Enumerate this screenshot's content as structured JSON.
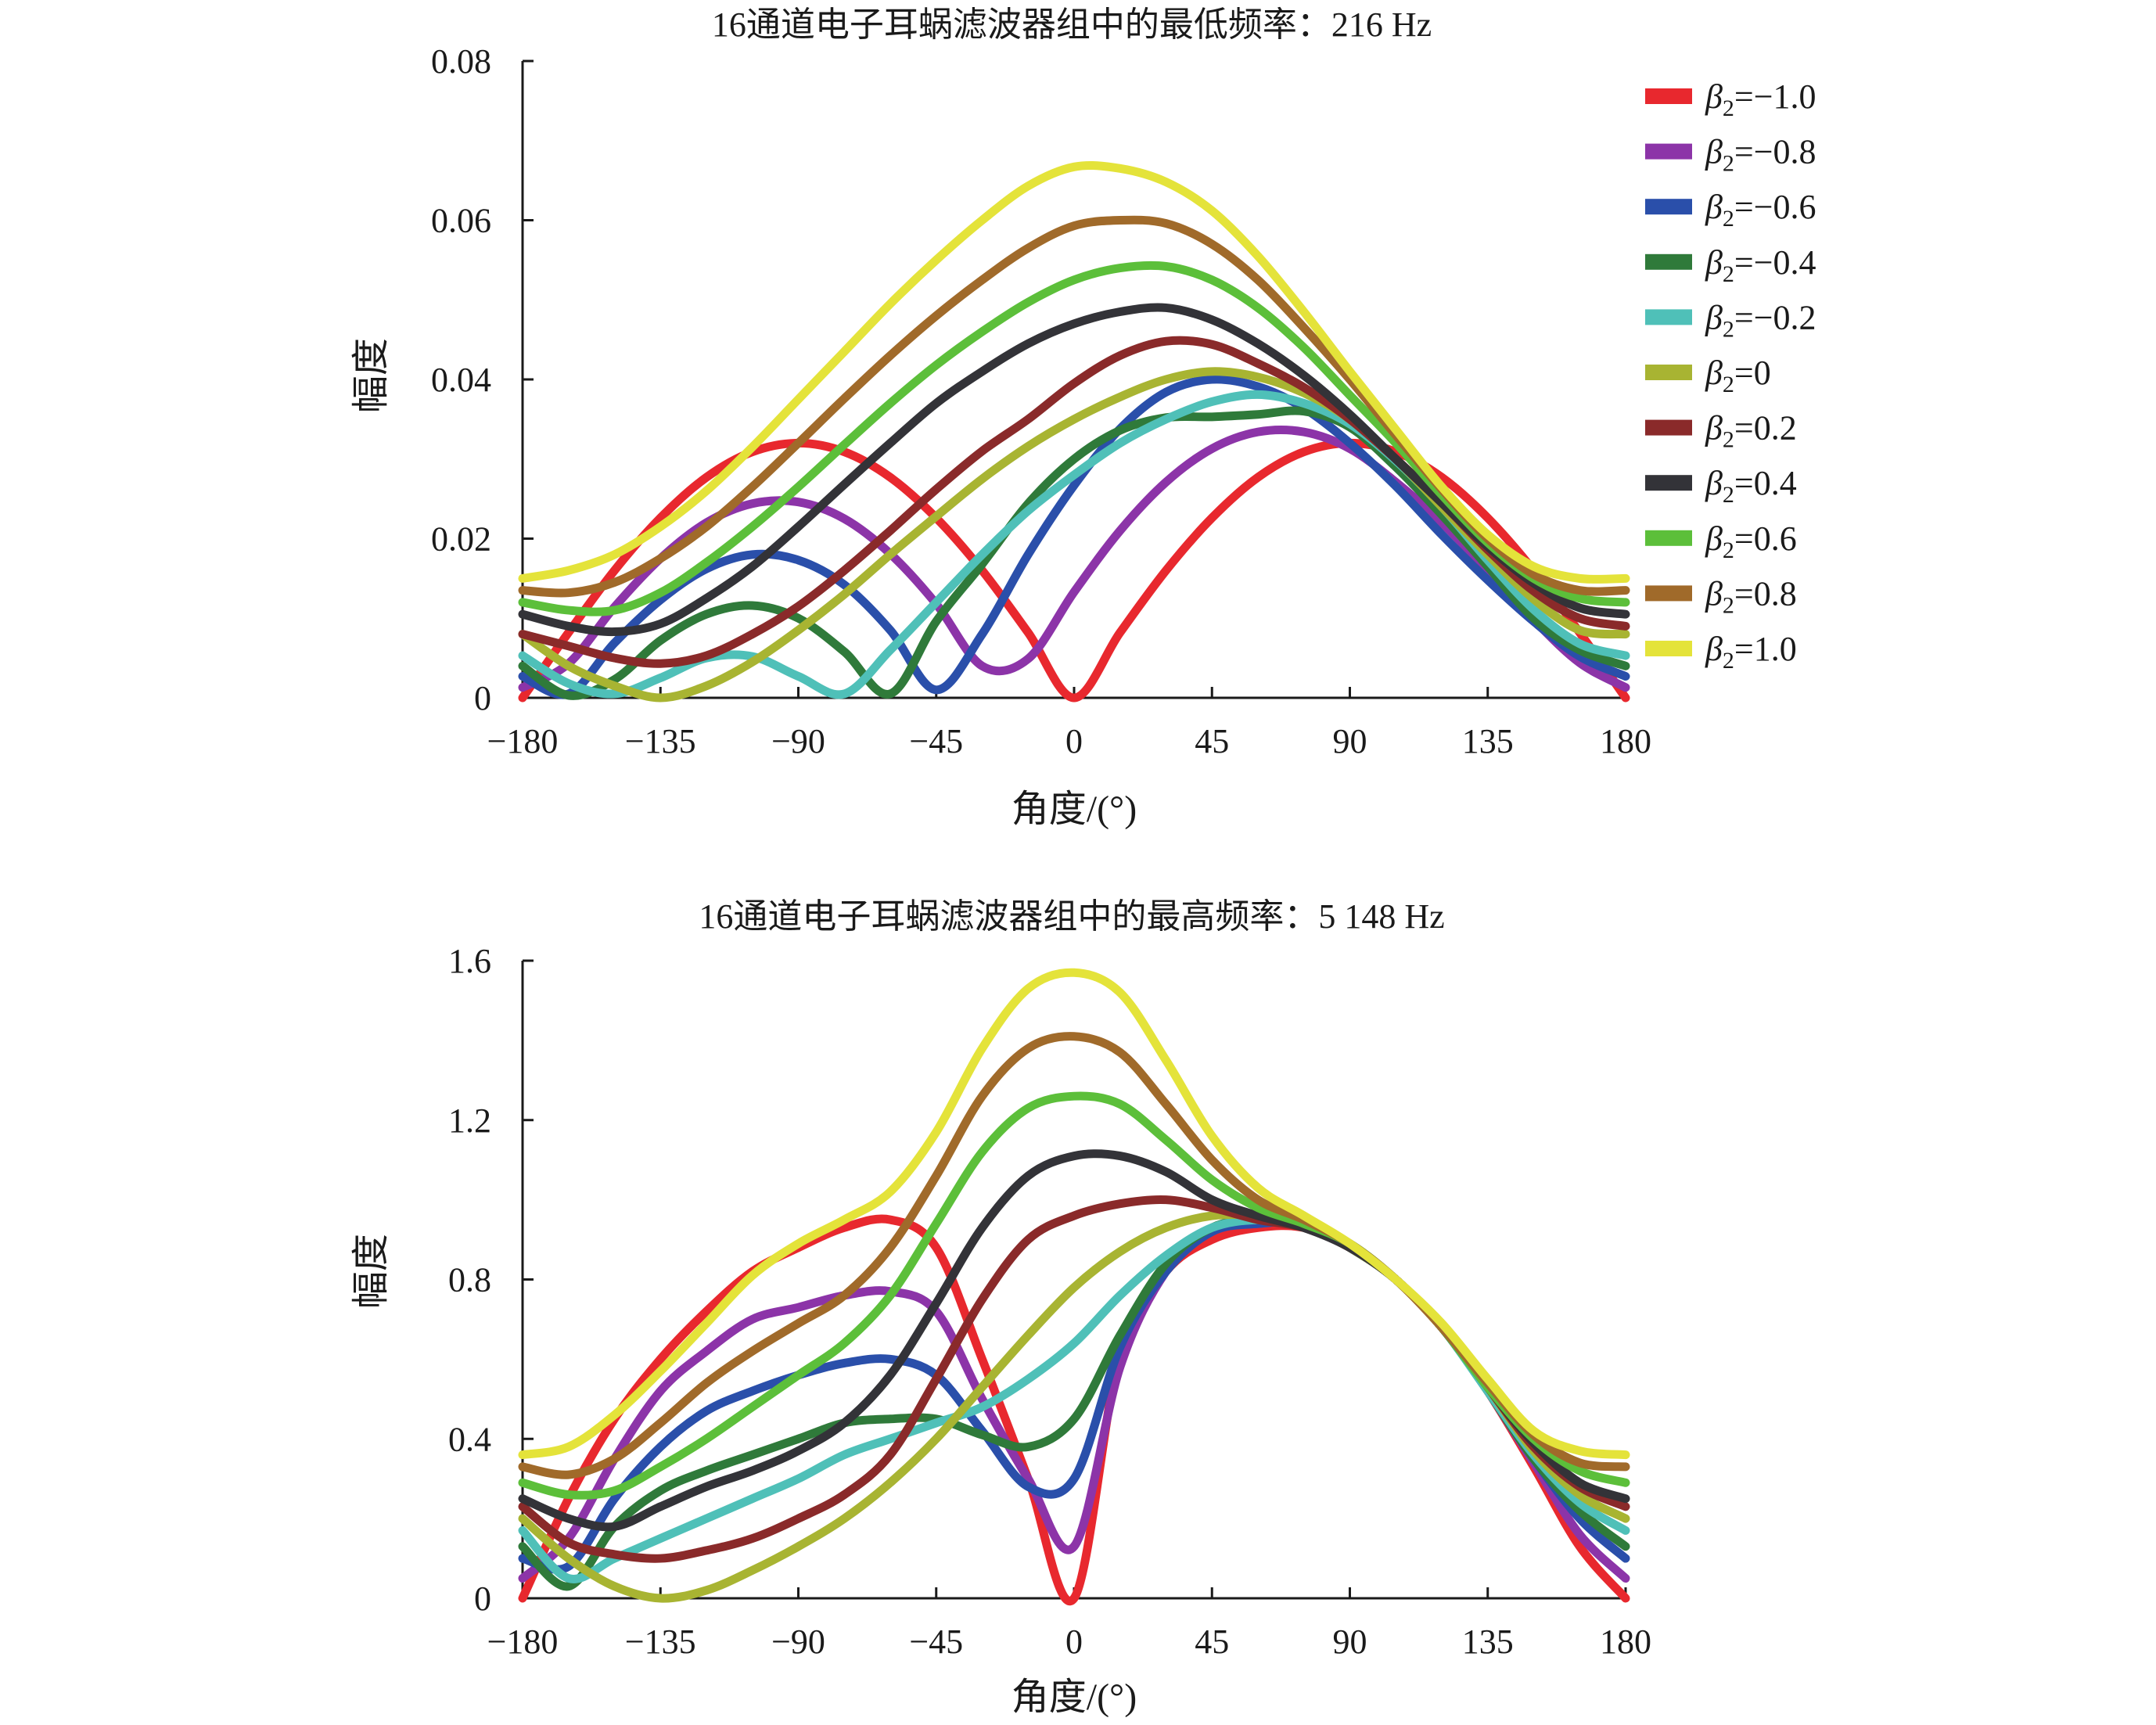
{
  "chart_data": [
    {
      "type": "line",
      "title": "16通道电子耳蜗滤波器组中的最低频率：216 Hz",
      "xlabel": "角度/(°)",
      "ylabel": "幅度",
      "xlim": [
        -180,
        180
      ],
      "ylim": [
        0,
        0.08
      ],
      "xticks": [
        -180,
        -135,
        -90,
        -45,
        0,
        45,
        90,
        135,
        180
      ],
      "xtick_labels": [
        "−180",
        "−135",
        "−90",
        "−45",
        "0",
        "45",
        "90",
        "135",
        "180"
      ],
      "yticks": [
        0,
        0.02,
        0.04,
        0.06,
        0.08
      ],
      "ytick_labels": [
        "0",
        "0.02",
        "0.04",
        "0.06",
        "0.08"
      ],
      "grid": false,
      "legend_placement": "right",
      "x": [
        -180,
        -165,
        -150,
        -135,
        -120,
        -105,
        -90,
        -75,
        -60,
        -45,
        -30,
        -15,
        0,
        15,
        30,
        45,
        60,
        75,
        90,
        105,
        120,
        135,
        150,
        165,
        180
      ],
      "series": [
        {
          "name": "β2=−1.0",
          "color": "#e8282e",
          "values": [
            0.0,
            0.0082,
            0.016,
            0.0226,
            0.0277,
            0.0309,
            0.032,
            0.0309,
            0.0277,
            0.0226,
            0.016,
            0.0082,
            0.0,
            0.0082,
            0.016,
            0.0226,
            0.0277,
            0.0309,
            0.032,
            0.0309,
            0.0277,
            0.0226,
            0.016,
            0.0082,
            0.0
          ]
        },
        {
          "name": "β2=−0.8",
          "color": "#8c34a8",
          "values": [
            0.0013,
            0.0043,
            0.0114,
            0.0175,
            0.022,
            0.0244,
            0.0246,
            0.0225,
            0.0181,
            0.0118,
            0.004,
            0.0049,
            0.0133,
            0.021,
            0.0271,
            0.0313,
            0.0334,
            0.0334,
            0.0313,
            0.0271,
            0.022,
            0.016,
            0.0098,
            0.0044,
            0.0013
          ]
        },
        {
          "name": "β2=−0.6",
          "color": "#2a4faa",
          "values": [
            0.0027,
            0.0005,
            0.0069,
            0.0123,
            0.0162,
            0.018,
            0.0173,
            0.0142,
            0.0085,
            0.001,
            0.008,
            0.018,
            0.0267,
            0.0338,
            0.0384,
            0.04,
            0.0391,
            0.0364,
            0.032,
            0.0266,
            0.0205,
            0.0148,
            0.0096,
            0.0052,
            0.0027
          ]
        },
        {
          "name": "β2=−0.4",
          "color": "#2f7a3a",
          "values": [
            0.004,
            0.0003,
            0.0023,
            0.0072,
            0.0105,
            0.0116,
            0.01,
            0.0058,
            0.0005,
            0.0096,
            0.0168,
            0.0244,
            0.03,
            0.0336,
            0.0352,
            0.0353,
            0.0356,
            0.036,
            0.034,
            0.029,
            0.023,
            0.0165,
            0.01,
            0.006,
            0.004
          ]
        },
        {
          "name": "β2=−0.2",
          "color": "#4fc0b8",
          "values": [
            0.0053,
            0.0018,
            0.0005,
            0.0025,
            0.005,
            0.0052,
            0.0027,
            0.0005,
            0.006,
            0.012,
            0.018,
            0.0235,
            0.028,
            0.032,
            0.035,
            0.0372,
            0.0381,
            0.037,
            0.0344,
            0.0298,
            0.024,
            0.0173,
            0.0111,
            0.0068,
            0.0053
          ]
        },
        {
          "name": "β2=0",
          "color": "#a8b432",
          "values": [
            0.008,
            0.004,
            0.0015,
            0.0,
            0.0015,
            0.0045,
            0.0085,
            0.013,
            0.018,
            0.0228,
            0.0275,
            0.0316,
            0.035,
            0.0378,
            0.04,
            0.041,
            0.0403,
            0.0383,
            0.035,
            0.03,
            0.024,
            0.018,
            0.0124,
            0.0085,
            0.008
          ]
        },
        {
          "name": "β2=0.2",
          "color": "#8a2a2a",
          "values": [
            0.008,
            0.0065,
            0.005,
            0.0043,
            0.0053,
            0.008,
            0.0115,
            0.016,
            0.021,
            0.0262,
            0.031,
            0.035,
            0.0395,
            0.043,
            0.0448,
            0.0444,
            0.042,
            0.039,
            0.035,
            0.03,
            0.0245,
            0.0186,
            0.0134,
            0.01,
            0.009
          ]
        },
        {
          "name": "β2=0.4",
          "color": "#333338",
          "values": [
            0.0105,
            0.009,
            0.0083,
            0.0093,
            0.0125,
            0.0165,
            0.0215,
            0.0268,
            0.032,
            0.037,
            0.041,
            0.0445,
            0.047,
            0.0485,
            0.049,
            0.0475,
            0.0445,
            0.0405,
            0.0356,
            0.03,
            0.0245,
            0.019,
            0.0144,
            0.0113,
            0.0105
          ]
        },
        {
          "name": "β2=0.6",
          "color": "#5cbf3a",
          "values": [
            0.012,
            0.011,
            0.011,
            0.0132,
            0.017,
            0.0215,
            0.0265,
            0.0318,
            0.037,
            0.0418,
            0.046,
            0.0497,
            0.0525,
            0.054,
            0.0542,
            0.0525,
            0.049,
            0.044,
            0.038,
            0.032,
            0.0255,
            0.0195,
            0.015,
            0.0125,
            0.012
          ]
        },
        {
          "name": "β2=0.8",
          "color": "#a06a2a",
          "values": [
            0.0135,
            0.0132,
            0.0145,
            0.0175,
            0.0215,
            0.0265,
            0.032,
            0.0376,
            0.043,
            0.048,
            0.0525,
            0.0565,
            0.0593,
            0.06,
            0.0596,
            0.057,
            0.0525,
            0.0465,
            0.04,
            0.033,
            0.0262,
            0.02,
            0.0155,
            0.0135,
            0.0135
          ]
        },
        {
          "name": "β2=1.0",
          "color": "#e4e33a",
          "values": [
            0.015,
            0.016,
            0.018,
            0.0215,
            0.026,
            0.0315,
            0.0375,
            0.0435,
            0.0495,
            0.055,
            0.06,
            0.0643,
            0.0667,
            0.0665,
            0.0648,
            0.0612,
            0.0555,
            0.0485,
            0.041,
            0.0337,
            0.0265,
            0.0205,
            0.0165,
            0.015,
            0.015
          ]
        }
      ]
    },
    {
      "type": "line",
      "title": "16通道电子耳蜗滤波器组中的最高频率：5 148 Hz",
      "xlabel": "角度/(°)",
      "ylabel": "幅度",
      "xlim": [
        -180,
        180
      ],
      "ylim": [
        0,
        1.6
      ],
      "xticks": [
        -180,
        -135,
        -90,
        -45,
        0,
        45,
        90,
        135,
        180
      ],
      "xtick_labels": [
        "−180",
        "−135",
        "−90",
        "−45",
        "0",
        "45",
        "90",
        "135",
        "180"
      ],
      "yticks": [
        0,
        0.4,
        0.8,
        1.2,
        1.6
      ],
      "ytick_labels": [
        "0",
        "0.4",
        "0.8",
        "1.2",
        "1.6"
      ],
      "grid": false,
      "x": [
        -180,
        -165,
        -150,
        -135,
        -120,
        -105,
        -90,
        -75,
        -60,
        -45,
        -30,
        -15,
        0,
        15,
        30,
        45,
        60,
        75,
        90,
        105,
        120,
        135,
        150,
        165,
        180
      ],
      "series": [
        {
          "name": "β2=−1.0",
          "color": "#e8282e",
          "values": [
            0.0,
            0.25,
            0.45,
            0.6,
            0.72,
            0.82,
            0.88,
            0.93,
            0.95,
            0.88,
            0.6,
            0.3,
            0.0,
            0.62,
            0.82,
            0.9,
            0.93,
            0.93,
            0.88,
            0.8,
            0.68,
            0.52,
            0.33,
            0.13,
            0.0
          ]
        },
        {
          "name": "β2=−0.8",
          "color": "#8c34a8",
          "values": [
            0.05,
            0.15,
            0.35,
            0.52,
            0.62,
            0.7,
            0.73,
            0.76,
            0.77,
            0.72,
            0.5,
            0.3,
            0.13,
            0.58,
            0.82,
            0.92,
            0.94,
            0.94,
            0.88,
            0.8,
            0.68,
            0.52,
            0.34,
            0.16,
            0.05
          ]
        },
        {
          "name": "β2=−0.6",
          "color": "#2a4faa",
          "values": [
            0.1,
            0.08,
            0.25,
            0.38,
            0.47,
            0.52,
            0.56,
            0.59,
            0.6,
            0.56,
            0.42,
            0.28,
            0.3,
            0.63,
            0.82,
            0.92,
            0.94,
            0.94,
            0.88,
            0.8,
            0.68,
            0.52,
            0.35,
            0.2,
            0.1
          ]
        },
        {
          "name": "β2=−0.4",
          "color": "#2f7a3a",
          "values": [
            0.13,
            0.03,
            0.18,
            0.27,
            0.32,
            0.36,
            0.4,
            0.44,
            0.45,
            0.45,
            0.41,
            0.38,
            0.45,
            0.66,
            0.84,
            0.93,
            0.95,
            0.94,
            0.88,
            0.8,
            0.68,
            0.52,
            0.35,
            0.22,
            0.13
          ]
        },
        {
          "name": "β2=−0.2",
          "color": "#4fc0b8",
          "values": [
            0.17,
            0.05,
            0.1,
            0.15,
            0.2,
            0.25,
            0.3,
            0.36,
            0.4,
            0.44,
            0.48,
            0.55,
            0.64,
            0.76,
            0.86,
            0.93,
            0.95,
            0.94,
            0.88,
            0.8,
            0.68,
            0.52,
            0.36,
            0.24,
            0.17
          ]
        },
        {
          "name": "β2=0",
          "color": "#a8b432",
          "values": [
            0.2,
            0.1,
            0.03,
            0.0,
            0.02,
            0.07,
            0.13,
            0.2,
            0.29,
            0.4,
            0.53,
            0.66,
            0.78,
            0.87,
            0.93,
            0.96,
            0.96,
            0.94,
            0.88,
            0.8,
            0.68,
            0.53,
            0.37,
            0.26,
            0.2
          ]
        },
        {
          "name": "β2=0.2",
          "color": "#8a2a2a",
          "values": [
            0.23,
            0.14,
            0.11,
            0.1,
            0.12,
            0.15,
            0.2,
            0.26,
            0.36,
            0.55,
            0.75,
            0.9,
            0.96,
            0.99,
            1.0,
            0.98,
            0.95,
            0.93,
            0.88,
            0.8,
            0.68,
            0.53,
            0.38,
            0.28,
            0.23
          ]
        },
        {
          "name": "β2=0.4",
          "color": "#333338",
          "values": [
            0.25,
            0.2,
            0.18,
            0.23,
            0.28,
            0.32,
            0.37,
            0.44,
            0.56,
            0.74,
            0.93,
            1.06,
            1.11,
            1.11,
            1.07,
            1.0,
            0.96,
            0.93,
            0.88,
            0.8,
            0.68,
            0.53,
            0.39,
            0.29,
            0.25
          ]
        },
        {
          "name": "β2=0.6",
          "color": "#5cbf3a",
          "values": [
            0.29,
            0.26,
            0.27,
            0.33,
            0.4,
            0.48,
            0.56,
            0.64,
            0.76,
            0.94,
            1.12,
            1.23,
            1.26,
            1.24,
            1.15,
            1.05,
            0.98,
            0.94,
            0.89,
            0.8,
            0.68,
            0.53,
            0.4,
            0.32,
            0.29
          ]
        },
        {
          "name": "β2=0.8",
          "color": "#a06a2a",
          "values": [
            0.33,
            0.31,
            0.35,
            0.44,
            0.54,
            0.62,
            0.69,
            0.76,
            0.88,
            1.06,
            1.26,
            1.38,
            1.41,
            1.37,
            1.24,
            1.1,
            1.0,
            0.95,
            0.89,
            0.8,
            0.68,
            0.54,
            0.41,
            0.34,
            0.33
          ]
        },
        {
          "name": "β2=1.0",
          "color": "#e4e33a",
          "values": [
            0.36,
            0.38,
            0.46,
            0.57,
            0.69,
            0.81,
            0.89,
            0.95,
            1.02,
            1.17,
            1.38,
            1.53,
            1.57,
            1.52,
            1.35,
            1.16,
            1.03,
            0.96,
            0.89,
            0.8,
            0.69,
            0.55,
            0.42,
            0.37,
            0.36
          ]
        }
      ]
    }
  ]
}
